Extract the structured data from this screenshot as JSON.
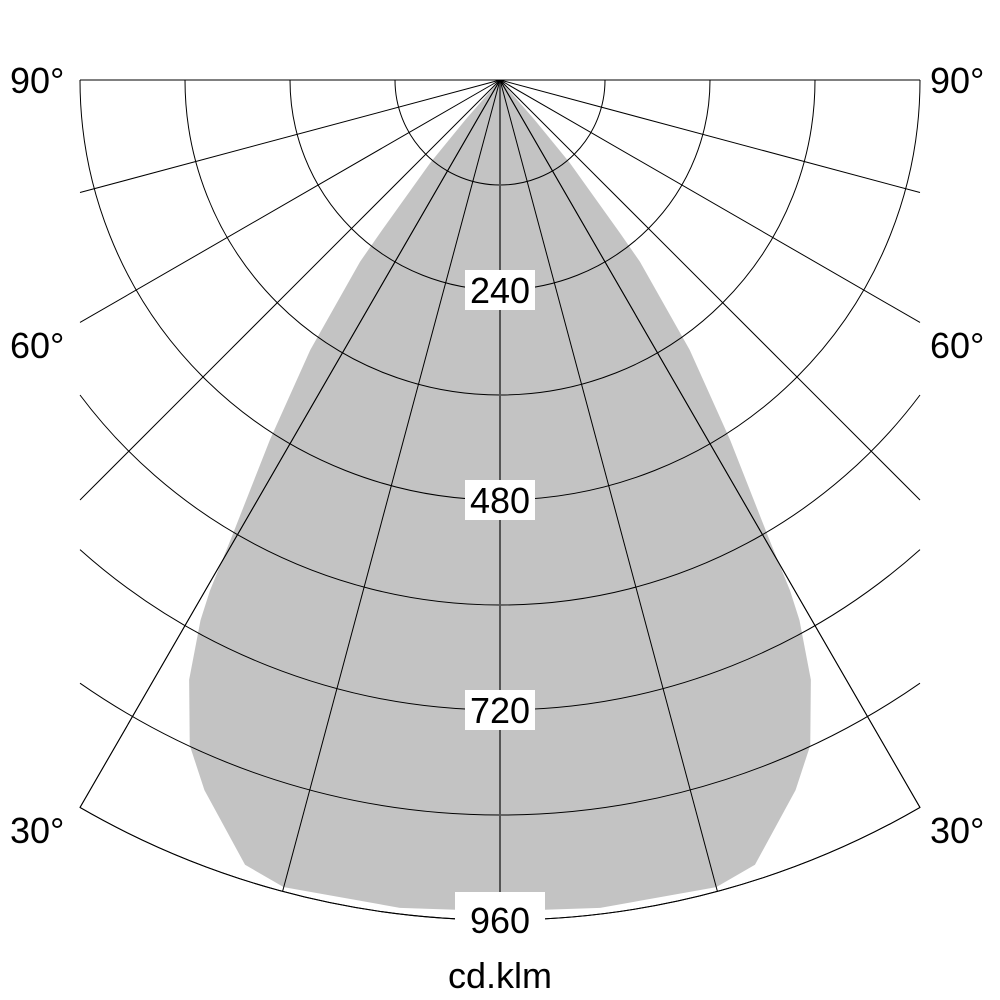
{
  "diagram": {
    "type": "polar-light-distribution",
    "unit_label": "cd.klm",
    "fill_color": "#c3c3c3",
    "radial_ticks": [
      120,
      240,
      360,
      480,
      600,
      720,
      840,
      960
    ],
    "radial_labels": [
      "240",
      "480",
      "720",
      "960"
    ],
    "angle_lines_deg": [
      0,
      15,
      30,
      45,
      60,
      75,
      90
    ],
    "angle_labels": {
      "left": [
        "90°",
        "60°",
        "30°"
      ],
      "right": [
        "90°",
        "60°",
        "30°"
      ]
    },
    "angle_label_values": [
      90,
      60,
      30
    ],
    "visible_angle_range_deg": [
      -90,
      90
    ],
    "outer_limit_deg": 30,
    "r_max": 960,
    "symmetric": true,
    "intensity_curve": [
      {
        "angle": 0,
        "cd": 950
      },
      {
        "angle": 6.9,
        "cd": 953
      },
      {
        "angle": 15,
        "cd": 955
      },
      {
        "angle": 18,
        "cd": 943
      },
      {
        "angle": 22.6,
        "cd": 879
      },
      {
        "angle": 25,
        "cd": 839
      },
      {
        "angle": 27.4,
        "cd": 772
      },
      {
        "angle": 29,
        "cd": 706
      },
      {
        "angle": 29.6,
        "cd": 671
      },
      {
        "angle": 30.4,
        "cd": 607
      },
      {
        "angle": 32.6,
        "cd": 488
      },
      {
        "angle": 35.1,
        "cd": 377
      },
      {
        "angle": 37.6,
        "cd": 262
      },
      {
        "angle": 38.1,
        "cd": 222
      },
      {
        "angle": 40.1,
        "cd": 124
      },
      {
        "angle": 41,
        "cd": 60
      },
      {
        "angle": 42,
        "cd": 0
      }
    ]
  }
}
